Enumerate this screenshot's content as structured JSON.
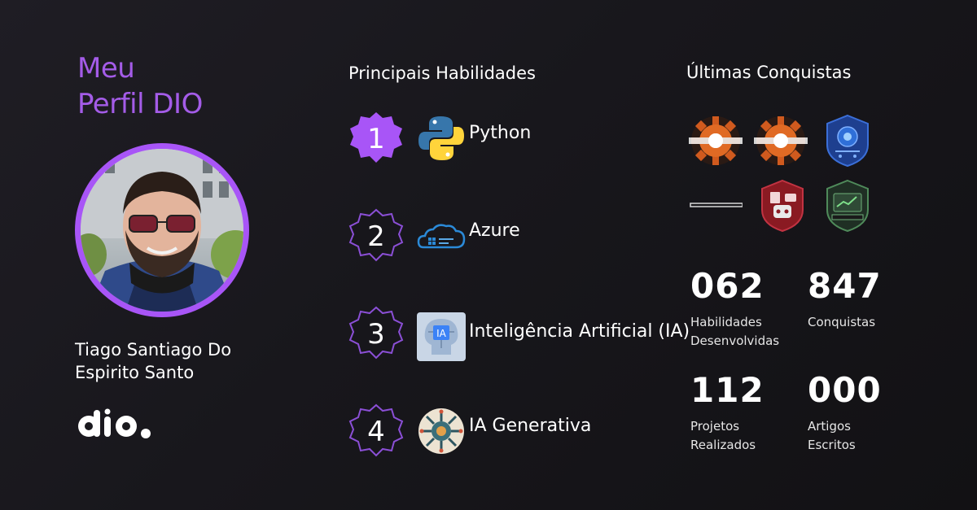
{
  "profile": {
    "title_line1": "Meu",
    "title_line2": "Perfil DIO",
    "name_line1": "Tiago Santiago Do",
    "name_line2": "Espirito Santo",
    "brand": "dio."
  },
  "skills": {
    "heading": "Principais Habilidades",
    "items": [
      {
        "rank": "1",
        "label": "Python",
        "icon": "python-logo-icon"
      },
      {
        "rank": "2",
        "label": "Azure",
        "icon": "azure-cloud-icon"
      },
      {
        "rank": "3",
        "label": "Inteligência Artificial (IA)",
        "icon": "ai-head-icon"
      },
      {
        "rank": "4",
        "label": "IA Generativa",
        "icon": "ai-chip-icon"
      }
    ]
  },
  "achievements": {
    "heading": "Últimas Conquistas",
    "badges": [
      {
        "icon": "gear-badge-icon"
      },
      {
        "icon": "gear-badge-icon"
      },
      {
        "icon": "blue-shield-badge-icon"
      },
      {
        "icon": "blank-badge-icon"
      },
      {
        "icon": "red-shield-robot-badge-icon"
      },
      {
        "icon": "green-shield-badge-icon"
      }
    ]
  },
  "stats": [
    {
      "value": "062",
      "label_line1": "Habilidades",
      "label_line2": "Desenvolvidas"
    },
    {
      "value": "847",
      "label_line1": "Conquistas",
      "label_line2": ""
    },
    {
      "value": "112",
      "label_line1": "Projetos",
      "label_line2": "Realizados"
    },
    {
      "value": "000",
      "label_line1": "Artigos",
      "label_line2": "Escritos"
    }
  ],
  "colors": {
    "accent": "#a855f7",
    "title_purple": "#a45ce8",
    "background": "#1a191e"
  }
}
